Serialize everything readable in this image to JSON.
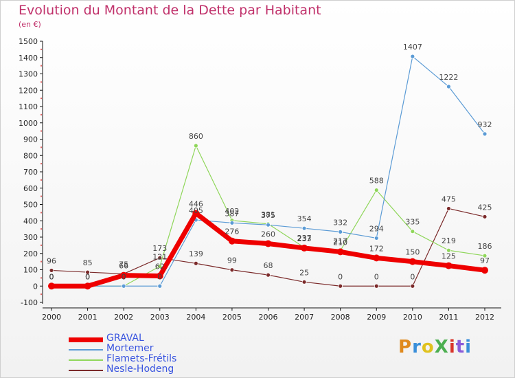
{
  "header": {
    "title": "Evolution du Montant de la Dette par Habitant",
    "unit": "(en €)"
  },
  "logo": {
    "text": "ProXiti",
    "colors": [
      "#e08a1e",
      "#3a8fd9",
      "#e0c21e",
      "#4caf50",
      "#d9342b",
      "#8a5bd9",
      "#3a8fd9"
    ]
  },
  "chart_data": {
    "type": "line",
    "title": "Evolution du Montant de la Dette par Habitant",
    "ylabel": "(en €)",
    "xlabel": "",
    "categories": [
      "2000",
      "2001",
      "2002",
      "2003",
      "2004",
      "2005",
      "2006",
      "2007",
      "2008",
      "2009",
      "2010",
      "2011",
      "2012"
    ],
    "ylim": [
      -100,
      1500
    ],
    "yticks": [
      -100,
      0,
      100,
      200,
      300,
      400,
      500,
      600,
      700,
      800,
      900,
      1000,
      1100,
      1200,
      1300,
      1400,
      1500
    ],
    "grid": false,
    "legend_position": "bottom-left",
    "series": [
      {
        "name": "GRAVAL",
        "color": "#ee0000",
        "values": [
          0,
          0,
          66,
          62,
          446,
          276,
          260,
          233,
          210,
          172,
          150,
          125,
          97
        ]
      },
      {
        "name": "Mortemer",
        "color": "#5b9bd5",
        "values": [
          0,
          0,
          0,
          0,
          405,
          387,
          375,
          354,
          332,
          294,
          1407,
          1222,
          932
        ]
      },
      {
        "name": "Flamets-Frétils",
        "color": "#8fd65a",
        "values": [
          0,
          0,
          0,
          121,
          860,
          402,
          381,
          237,
          217,
          588,
          335,
          219,
          186
        ]
      },
      {
        "name": "Nesle-Hodeng",
        "color": "#7b2a2a",
        "values": [
          96,
          85,
          75,
          173,
          139,
          99,
          68,
          25,
          0,
          0,
          0,
          475,
          425
        ]
      }
    ]
  }
}
